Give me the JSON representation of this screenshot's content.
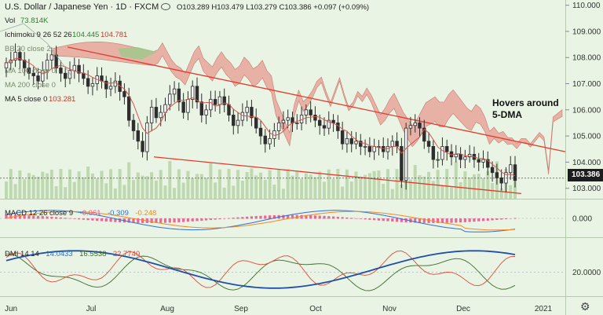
{
  "header": {
    "symbol": "U.S. Dollar / Japanese Yen · 1D · FXCM",
    "ohlc": "O103.289 H103.479 L103.279 C103.386 +0.097 (+0.09%)",
    "vol_label": "Vol",
    "vol_value": "73.814K"
  },
  "indicators": {
    "ichimoku_label": "Ichimoku 9 26 52 26",
    "ichimoku_v1": "104.445",
    "ichimoku_v2": "104.781",
    "bb_label": "BB 20 close 2",
    "ma100_label": "MA 100 close 0",
    "ma200_label": "MA 200 close 0",
    "ma5_label": "MA 5 close 0",
    "ma5_value": "103.281",
    "macd_label": "MACD 12 26 close 9",
    "macd_v1": "-0.061",
    "macd_v2": "-0.309",
    "macd_v3": "-0.248",
    "dmi_label": "DMI 14 14",
    "dmi_v1": "14.0433",
    "dmi_v2": "16.5538",
    "dmi_v3": "22.7740"
  },
  "annotation": {
    "line1": "Hovers around",
    "line2": "5-DMA"
  },
  "last_price": "103.386",
  "colors": {
    "background": "#e9f4e4",
    "up": "#2e2e2e",
    "down": "#2e2e2e",
    "cloud_bear": "#e8a59a",
    "cloud_bull": "#9cc98a",
    "trendline": "#e23b2e",
    "ma": "#d9534f",
    "macd": "#2d6fd6",
    "signal": "#f08a24",
    "hist": "#e94d8a",
    "adx": "#1f4fa8",
    "plus_di": "#3c6b2c",
    "minus_di": "#e0493a"
  },
  "chart_data": {
    "type": "line",
    "price": {
      "yaxis_ticks": [
        "110.000",
        "109.000",
        "108.000",
        "107.000",
        "106.000",
        "105.000",
        "104.000",
        "103.000"
      ],
      "ylim": [
        102.6,
        110.2
      ],
      "close": [
        107.8,
        107.9,
        108.2,
        107.9,
        107.6,
        107.4,
        107.3,
        107.1,
        107.5,
        107.9,
        108.1,
        107.6,
        107.4,
        107.2,
        107.5,
        107.7,
        107.4,
        107.2,
        106.9,
        107.0,
        107.3,
        107.1,
        106.8,
        106.9,
        107.1,
        106.7,
        106.5,
        105.6,
        105.2,
        104.8,
        104.4,
        105.5,
        106.1,
        105.7,
        105.9,
        106.2,
        106.6,
        106.8,
        106.3,
        105.9,
        106.4,
        106.9,
        106.3,
        105.8,
        106.0,
        106.4,
        106.2,
        106.5,
        106.2,
        105.8,
        105.4,
        105.6,
        105.9,
        106.1,
        105.7,
        105.3,
        105.0,
        104.7,
        104.9,
        105.2,
        105.5,
        105.6,
        105.7,
        105.5,
        105.5,
        105.8,
        106.0,
        105.8,
        105.6,
        105.4,
        105.3,
        105.6,
        105.5,
        105.2,
        104.7,
        104.9,
        104.7,
        104.8,
        104.6,
        104.6,
        104.4,
        104.6,
        104.6,
        104.4,
        104.6,
        104.8,
        104.6,
        103.3,
        105.3,
        105.4,
        105.5,
        105.3,
        104.8,
        104.6,
        104.1,
        104.1,
        104.6,
        104.4,
        104.2,
        104.3,
        104.1,
        104.2,
        104.3,
        104.1,
        104.0,
        104.1,
        103.8,
        103.6,
        103.4,
        103.2,
        103.6,
        103.9,
        103.3
      ]
    },
    "xaxis_ticks": [
      "Jun",
      "Jul",
      "Aug",
      "Sep",
      "Oct",
      "Nov",
      "Dec",
      "2021"
    ],
    "macd": {
      "tick": "0.000",
      "ylim": [
        -0.8,
        0.8
      ]
    },
    "dmi": {
      "tick": "20.0000",
      "ylim": [
        2,
        45
      ]
    }
  }
}
